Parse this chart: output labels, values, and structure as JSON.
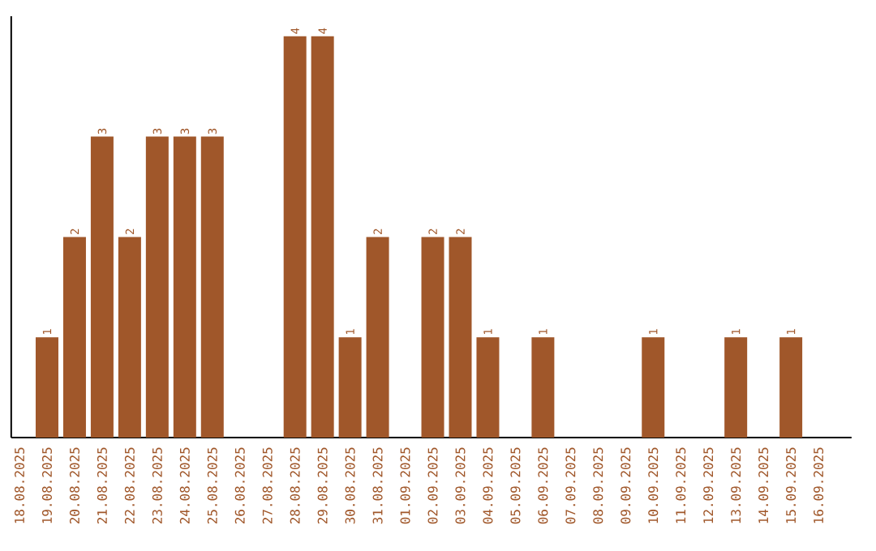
{
  "chart_data": {
    "type": "bar",
    "categories": [
      "18.08.2025",
      "19.08.2025",
      "20.08.2025",
      "21.08.2025",
      "22.08.2025",
      "23.08.2025",
      "24.08.2025",
      "25.08.2025",
      "26.08.2025",
      "27.08.2025",
      "28.08.2025",
      "29.08.2025",
      "30.08.2025",
      "31.08.2025",
      "01.09.2025",
      "02.09.2025",
      "03.09.2025",
      "04.09.2025",
      "05.09.2025",
      "06.09.2025",
      "07.09.2025",
      "08.09.2025",
      "09.09.2025",
      "10.09.2025",
      "11.09.2025",
      "12.09.2025",
      "13.09.2025",
      "14.09.2025",
      "15.09.2025",
      "16.09.2025"
    ],
    "values": [
      0,
      1,
      2,
      3,
      2,
      3,
      3,
      3,
      0,
      0,
      4,
      4,
      1,
      2,
      0,
      2,
      2,
      1,
      0,
      1,
      0,
      0,
      0,
      1,
      0,
      0,
      1,
      0,
      1,
      0
    ],
    "value_labels": [
      null,
      "1",
      "2",
      "3",
      "2",
      "3",
      "3",
      "3",
      null,
      null,
      "4",
      "4",
      "1",
      "2",
      null,
      "2",
      "2",
      "1",
      null,
      "1",
      null,
      null,
      null,
      "1",
      null,
      null,
      "1",
      null,
      "1",
      null
    ],
    "color": "#a0572a",
    "ylim": [
      0,
      4.2
    ],
    "tick_labels": "x"
  }
}
